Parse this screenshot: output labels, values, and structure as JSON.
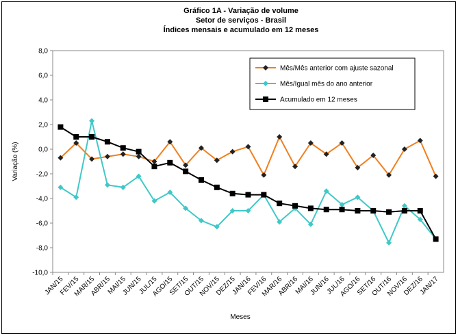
{
  "chart_data": {
    "type": "line",
    "title": "Gráfico 1A - Variação de volume",
    "subtitle": [
      "Setor de serviços - Brasil",
      "Índices mensais e acumulado em 12 meses"
    ],
    "y_label": "Variação (%)",
    "x_label": "Meses",
    "categories": [
      "JAN/15",
      "FEV/15",
      "MAR/15",
      "ABR/15",
      "MAI/15",
      "JUN/15",
      "JUL/15",
      "AGO/15",
      "SET/15",
      "OUT/15",
      "NOV/15",
      "DEZ/15",
      "JAN/16",
      "FEV/16",
      "MAR/16",
      "ABR/16",
      "MAI/16",
      "JUN/16",
      "JUL/16",
      "AGO/16",
      "SET/16",
      "OUT/16",
      "NOV/16",
      "DEZ/16",
      "JAN/17"
    ],
    "series": [
      {
        "name": "Mês/Mês anterior com ajuste sazonal",
        "color": "#f07f1e",
        "marker": "diamond",
        "marker_color": "#222222",
        "values": [
          -0.7,
          0.5,
          -0.8,
          -0.6,
          -0.4,
          -0.6,
          -1.0,
          0.6,
          -1.3,
          0.1,
          -0.9,
          -0.2,
          0.2,
          -2.1,
          1.0,
          -1.4,
          0.5,
          -0.4,
          0.5,
          -1.5,
          -0.5,
          -2.1,
          0.0,
          0.7,
          -2.2
        ]
      },
      {
        "name": "Mês/Igual mês do ano anterior",
        "color": "#40c8c8",
        "marker": "diamond",
        "marker_color": "#40c8c8",
        "values": [
          -3.1,
          -3.9,
          2.3,
          -2.9,
          -3.1,
          -2.2,
          -4.2,
          -3.5,
          -4.8,
          -5.8,
          -6.3,
          -5.0,
          -5.0,
          -3.7,
          -5.9,
          -4.8,
          -6.1,
          -3.4,
          -4.5,
          -3.9,
          -5.0,
          -7.6,
          -4.6,
          -5.7,
          -7.3
        ]
      },
      {
        "name": "Acumulado em 12 meses",
        "color": "#000000",
        "marker": "square",
        "marker_color": "#000000",
        "values": [
          1.8,
          1.0,
          1.0,
          0.6,
          0.1,
          -0.2,
          -1.4,
          -1.1,
          -1.8,
          -2.5,
          -3.1,
          -3.6,
          -3.7,
          -3.7,
          -4.4,
          -4.6,
          -4.8,
          -4.9,
          -4.9,
          -5.0,
          -5.0,
          -5.1,
          -5.0,
          -5.0,
          -7.3
        ]
      }
    ],
    "ylim": [
      -10,
      8
    ],
    "yticks": [
      {
        "value": -10,
        "label": "-10,0"
      },
      {
        "value": -8,
        "label": "-8,0"
      },
      {
        "value": -6,
        "label": "-6,0"
      },
      {
        "value": -4,
        "label": "-4,0"
      },
      {
        "value": -2,
        "label": "-2,0"
      },
      {
        "value": 0,
        "label": "0,0"
      },
      {
        "value": 2,
        "label": "2,0"
      },
      {
        "value": 4,
        "label": "4,0"
      },
      {
        "value": 6,
        "label": "6,0"
      },
      {
        "value": 8,
        "label": "8,0"
      }
    ],
    "grid": false,
    "legend": "top-right"
  }
}
